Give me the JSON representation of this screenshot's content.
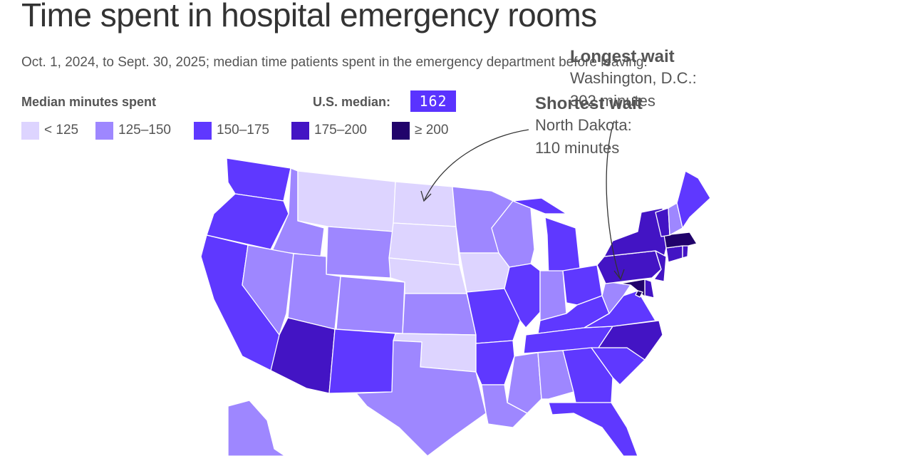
{
  "title": "Time spent in hospital emergency rooms",
  "subtitle": "Oct. 1, 2024, to Sept. 30, 2025; median time patients spent in the emergency department before leaving.",
  "legend": {
    "title": "Median minutes spent",
    "us_median_label": "U.S. median:",
    "us_median_value": "162",
    "bins": [
      {
        "label": "< 125",
        "color": "#ddd4ff"
      },
      {
        "label": "125–150",
        "color": "#9e87ff"
      },
      {
        "label": "150–175",
        "color": "#5f38ff"
      },
      {
        "label": "175–200",
        "color": "#4314c4"
      },
      {
        "label": "≥ 200",
        "color": "#21036b"
      }
    ]
  },
  "annotations": {
    "longest": {
      "heading": "Longest wait",
      "line1": "Washington, D.C.:",
      "line2": "302 minutes"
    },
    "shortest": {
      "heading": "Shortest wait",
      "line1": "North Dakota:",
      "line2": "110 minutes"
    }
  },
  "states": [
    {
      "name": "WA",
      "bin": 2
    },
    {
      "name": "OR",
      "bin": 2
    },
    {
      "name": "CA",
      "bin": 2
    },
    {
      "name": "ID",
      "bin": 1
    },
    {
      "name": "NV",
      "bin": 1
    },
    {
      "name": "MT",
      "bin": 0
    },
    {
      "name": "WY",
      "bin": 1
    },
    {
      "name": "UT",
      "bin": 1
    },
    {
      "name": "AZ",
      "bin": 3
    },
    {
      "name": "CO",
      "bin": 1
    },
    {
      "name": "NM",
      "bin": 2
    },
    {
      "name": "ND",
      "bin": 0
    },
    {
      "name": "SD",
      "bin": 0
    },
    {
      "name": "NE",
      "bin": 0
    },
    {
      "name": "KS",
      "bin": 1
    },
    {
      "name": "OK",
      "bin": 0
    },
    {
      "name": "TX",
      "bin": 1
    },
    {
      "name": "MN",
      "bin": 1
    },
    {
      "name": "IA",
      "bin": 0
    },
    {
      "name": "MO",
      "bin": 2
    },
    {
      "name": "AR",
      "bin": 2
    },
    {
      "name": "LA",
      "bin": 1
    },
    {
      "name": "WI",
      "bin": 1
    },
    {
      "name": "IL",
      "bin": 2
    },
    {
      "name": "MI",
      "bin": 2
    },
    {
      "name": "IN",
      "bin": 1
    },
    {
      "name": "OH",
      "bin": 2
    },
    {
      "name": "KY",
      "bin": 2
    },
    {
      "name": "TN",
      "bin": 2
    },
    {
      "name": "MS",
      "bin": 1
    },
    {
      "name": "AL",
      "bin": 1
    },
    {
      "name": "GA",
      "bin": 2
    },
    {
      "name": "FL",
      "bin": 2
    },
    {
      "name": "SC",
      "bin": 2
    },
    {
      "name": "NC",
      "bin": 3
    },
    {
      "name": "VA",
      "bin": 2
    },
    {
      "name": "WV",
      "bin": 1
    },
    {
      "name": "PA",
      "bin": 3
    },
    {
      "name": "NY",
      "bin": 3
    },
    {
      "name": "NJ",
      "bin": 3
    },
    {
      "name": "DE",
      "bin": 3
    },
    {
      "name": "MD",
      "bin": 4
    },
    {
      "name": "DC",
      "bin": 4
    },
    {
      "name": "CT",
      "bin": 3
    },
    {
      "name": "RI",
      "bin": 3
    },
    {
      "name": "MA",
      "bin": 4
    },
    {
      "name": "VT",
      "bin": 3
    },
    {
      "name": "NH",
      "bin": 1
    },
    {
      "name": "ME",
      "bin": 2
    },
    {
      "name": "AK",
      "bin": 1
    }
  ]
}
